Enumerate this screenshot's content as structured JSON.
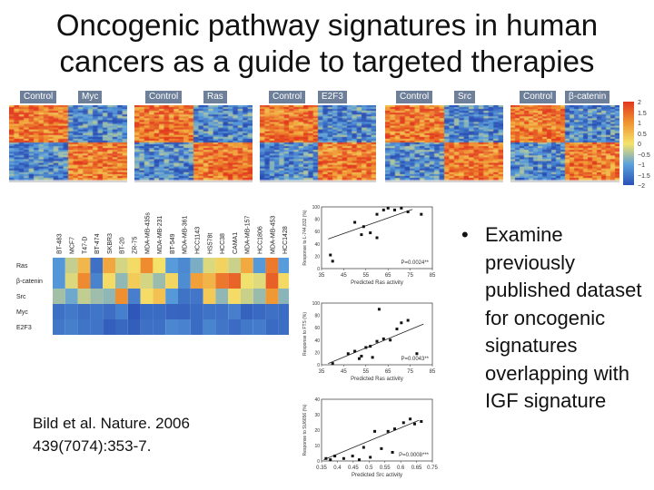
{
  "title_line1": "Oncogenic pathway signatures in human",
  "title_line2": "cancers as a guide to targeted therapies",
  "heatmaps": [
    {
      "label_a": "Control",
      "label_b": "Myc"
    },
    {
      "label_a": "Control",
      "label_b": "Ras"
    },
    {
      "label_a": "Control",
      "label_b": "E2F3"
    },
    {
      "label_a": "Control",
      "label_b": "Src"
    },
    {
      "label_a": "Control",
      "label_b": "β-catenin"
    }
  ],
  "colorbar_ticks": [
    "2",
    "1.5",
    "1",
    "0.5",
    "0",
    "−0.5",
    "−1",
    "−1.5",
    "−2"
  ],
  "colors": {
    "high": "#e23a1f",
    "mid": "#f4e36b",
    "low": "#2a4fb5",
    "label_bg": "#6d7f99"
  },
  "cell_lines": [
    "BT-483",
    "MCF7",
    "T47-D",
    "BT-474",
    "SKBR3",
    "BT-20",
    "ZR-75",
    "MDA-MB-435s",
    "MDA-MB-231",
    "BT-549",
    "MDA-MB-361",
    "HCC1143",
    "HS578t",
    "HCC38",
    "CAMA1",
    "MDA-MB-157",
    "HCC1806",
    "MDA-MB-453",
    "HCC1428"
  ],
  "pathway_rows": [
    "Ras",
    "β-catenin",
    "Src",
    "Myc",
    "E2F3"
  ],
  "scatter_plots": [
    {
      "ylabel": "Response to L-744,832 (%)",
      "xlabel": "Predicted Ras activity",
      "p_value": "P=0.0024**",
      "xticks": [
        "35",
        "45",
        "55",
        "65",
        "75",
        "85"
      ],
      "yticks": [
        "100",
        "80",
        "60",
        "40",
        "20",
        "0"
      ]
    },
    {
      "ylabel": "Response to FTS (%)",
      "xlabel": "Predicted Ras activity",
      "p_value": "P=0.0043**",
      "xticks": [
        "35",
        "45",
        "55",
        "65",
        "75",
        "85"
      ],
      "yticks": [
        "100",
        "80",
        "60",
        "40",
        "20",
        "0"
      ]
    },
    {
      "ylabel": "Response to SU6656 (%)",
      "xlabel": "Predicted Src activity",
      "p_value": "P=0.0008***",
      "xticks": [
        "0.35",
        "0.4",
        "0.45",
        "0.5",
        "0.55",
        "0.6",
        "0.65",
        "0.75"
      ],
      "yticks": [
        "40",
        "30",
        "20",
        "10",
        "0"
      ]
    }
  ],
  "citation_line1": "Bild et al. Nature. 2006",
  "citation_line2": "439(7074):353-7.",
  "bullet_symbol": "•",
  "bullet_text": "Examine previously published dataset for oncogenic signatures overlapping with IGF signature"
}
